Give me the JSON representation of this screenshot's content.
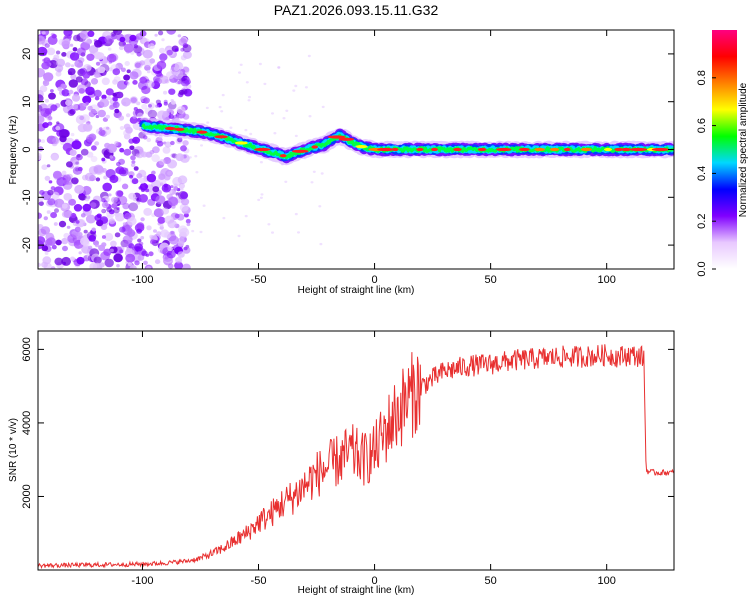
{
  "page": {
    "title": "PAZ1.2026.093.15.11.G32"
  },
  "chart_data": [
    {
      "type": "heatmap",
      "title": "PAZ1.2026.093.15.11.G32",
      "xlabel": "Height of straight line (km)",
      "ylabel": "Frequency (Hz)",
      "xlim": [
        -145,
        129
      ],
      "ylim": [
        -25,
        25
      ],
      "xticks": [
        -100,
        -50,
        0,
        50,
        100
      ],
      "yticks": [
        -20,
        -10,
        0,
        10,
        20
      ],
      "noise_region_x": [
        -145,
        -80
      ],
      "ridge": {
        "x": [
          -100,
          -90,
          -80,
          -72,
          -65,
          -55,
          -45,
          -38,
          -30,
          -22,
          -15,
          -10,
          -5,
          0,
          20,
          40,
          60,
          80,
          100,
          129
        ],
        "frequency": [
          5,
          4.5,
          4,
          3.5,
          2.5,
          1,
          -0.5,
          -1.5,
          0,
          1,
          3,
          1.5,
          0.5,
          0,
          0,
          0,
          0,
          0,
          0,
          0
        ]
      },
      "colorbar": {
        "label": "Normalized spectral amplitude",
        "range": [
          0,
          1
        ],
        "ticks": [
          0.0,
          0.2,
          0.4,
          0.6,
          0.8
        ],
        "tick_labels": [
          "0.0",
          "0.2",
          "0.4",
          "0.6",
          "0.8"
        ],
        "colors": [
          "#ffffff",
          "#e8c8ff",
          "#8000ff",
          "#0000ff",
          "#00d8ff",
          "#00ff00",
          "#ffff00",
          "#ff8000",
          "#ff0000",
          "#ff0080"
        ]
      }
    },
    {
      "type": "line",
      "xlabel": "Height of straight line (km)",
      "ylabel": "SNR (10 * v/v)",
      "xlim": [
        -145,
        129
      ],
      "ylim": [
        0,
        6500
      ],
      "xticks": [
        -100,
        -50,
        0,
        50,
        100
      ],
      "yticks": [
        2000,
        4000,
        6000
      ],
      "line_color": "#e83030",
      "series": [
        {
          "name": "SNR",
          "x": [
            -145,
            -120,
            -100,
            -90,
            -80,
            -75,
            -70,
            -65,
            -60,
            -55,
            -50,
            -45,
            -40,
            -35,
            -30,
            -25,
            -20,
            -15,
            -10,
            -5,
            0,
            5,
            10,
            15,
            20,
            25,
            30,
            40,
            50,
            60,
            70,
            80,
            90,
            100,
            105,
            110,
            115,
            116,
            117,
            120,
            125,
            129
          ],
          "y": [
            120,
            140,
            160,
            190,
            250,
            320,
            450,
            600,
            800,
            1000,
            1300,
            1500,
            1800,
            2000,
            2300,
            2600,
            2800,
            3000,
            3200,
            3000,
            3200,
            3800,
            4300,
            4700,
            5000,
            5200,
            5400,
            5550,
            5600,
            5700,
            5750,
            5800,
            5800,
            5850,
            5800,
            5850,
            5800,
            5800,
            2700,
            2650,
            2650,
            2650
          ]
        }
      ]
    }
  ]
}
